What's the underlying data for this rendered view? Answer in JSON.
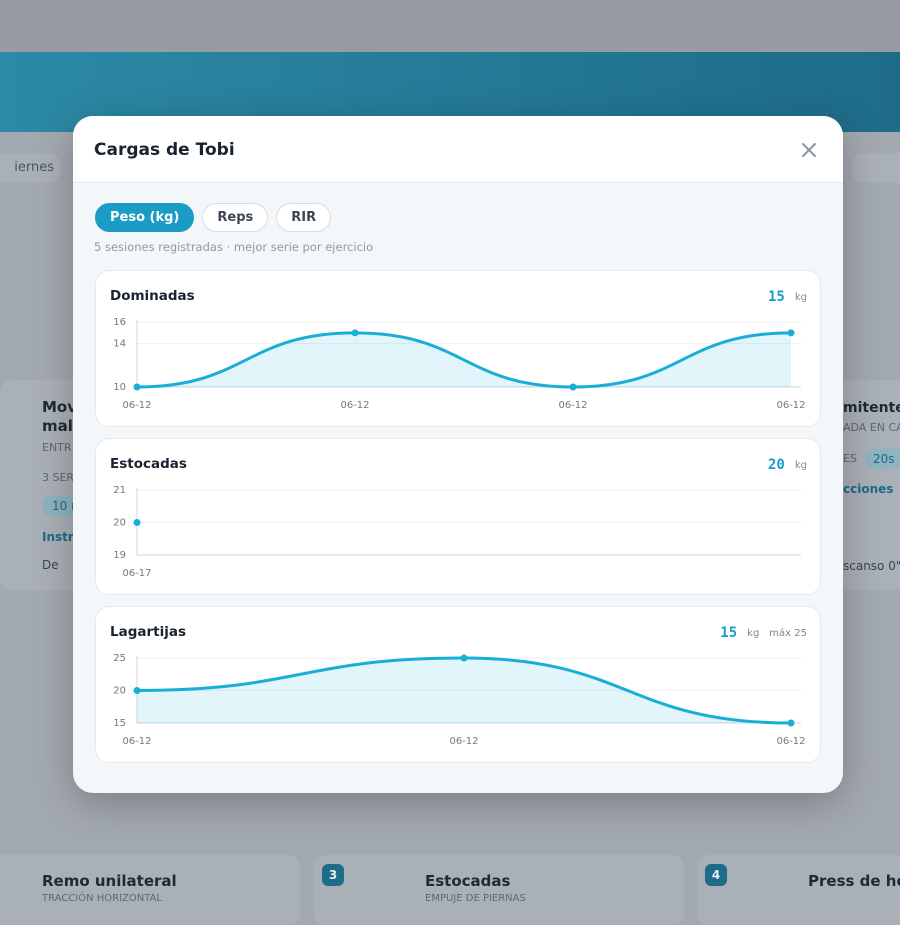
{
  "background": {
    "nav_chip": "iernes",
    "left_card": {
      "title_1": "Mov",
      "title_2": "mal",
      "tag": "ENTR",
      "sets": "3 SER",
      "reps": "10 r",
      "link": "Instru",
      "rest": "De"
    },
    "right_card": {
      "title": "mitente",
      "tag": "ADA EN CA",
      "sets": "ES",
      "rest_chip": "20s",
      "link": "cciones",
      "rest": "scanso 0\""
    },
    "bottom": [
      {
        "title": "Remo unilateral",
        "tag": "TRACCIÓN HORIZONTAL"
      },
      {
        "number": "3",
        "title": "Estocadas",
        "tag": "EMPUJE DE PIERNAS"
      },
      {
        "number": "4",
        "title": "Press de hom"
      }
    ]
  },
  "modal": {
    "title": "Cargas de Tobi",
    "tabs": [
      "Peso (kg)",
      "Reps",
      "RIR"
    ],
    "active_tab": 0,
    "note": "5 sesiones registradas · mejor serie por ejercicio",
    "charts": [
      {
        "type": "line",
        "title": "Dominadas",
        "latest": 15,
        "unit": "kg",
        "categories": [
          "06-12",
          "06-12",
          "06-12",
          "06-12"
        ],
        "values": [
          10,
          15,
          10,
          15
        ],
        "ylim": [
          10,
          16
        ],
        "yticks": [
          10,
          14,
          16
        ],
        "color": "#1aaed6"
      },
      {
        "type": "line",
        "title": "Estocadas",
        "latest": 20,
        "unit": "kg",
        "categories": [
          "06-17"
        ],
        "values": [
          20
        ],
        "ylim": [
          19,
          21
        ],
        "yticks": [
          19,
          20,
          21
        ],
        "color": "#1aaed6"
      },
      {
        "type": "line",
        "title": "Lagartijas",
        "latest": 15,
        "unit": "kg",
        "max_label": "máx 25",
        "categories": [
          "06-12",
          "06-12",
          "06-12"
        ],
        "values": [
          20,
          25,
          15
        ],
        "ylim": [
          15,
          25
        ],
        "yticks": [
          15,
          20,
          25
        ],
        "color": "#1aaed6"
      }
    ]
  }
}
